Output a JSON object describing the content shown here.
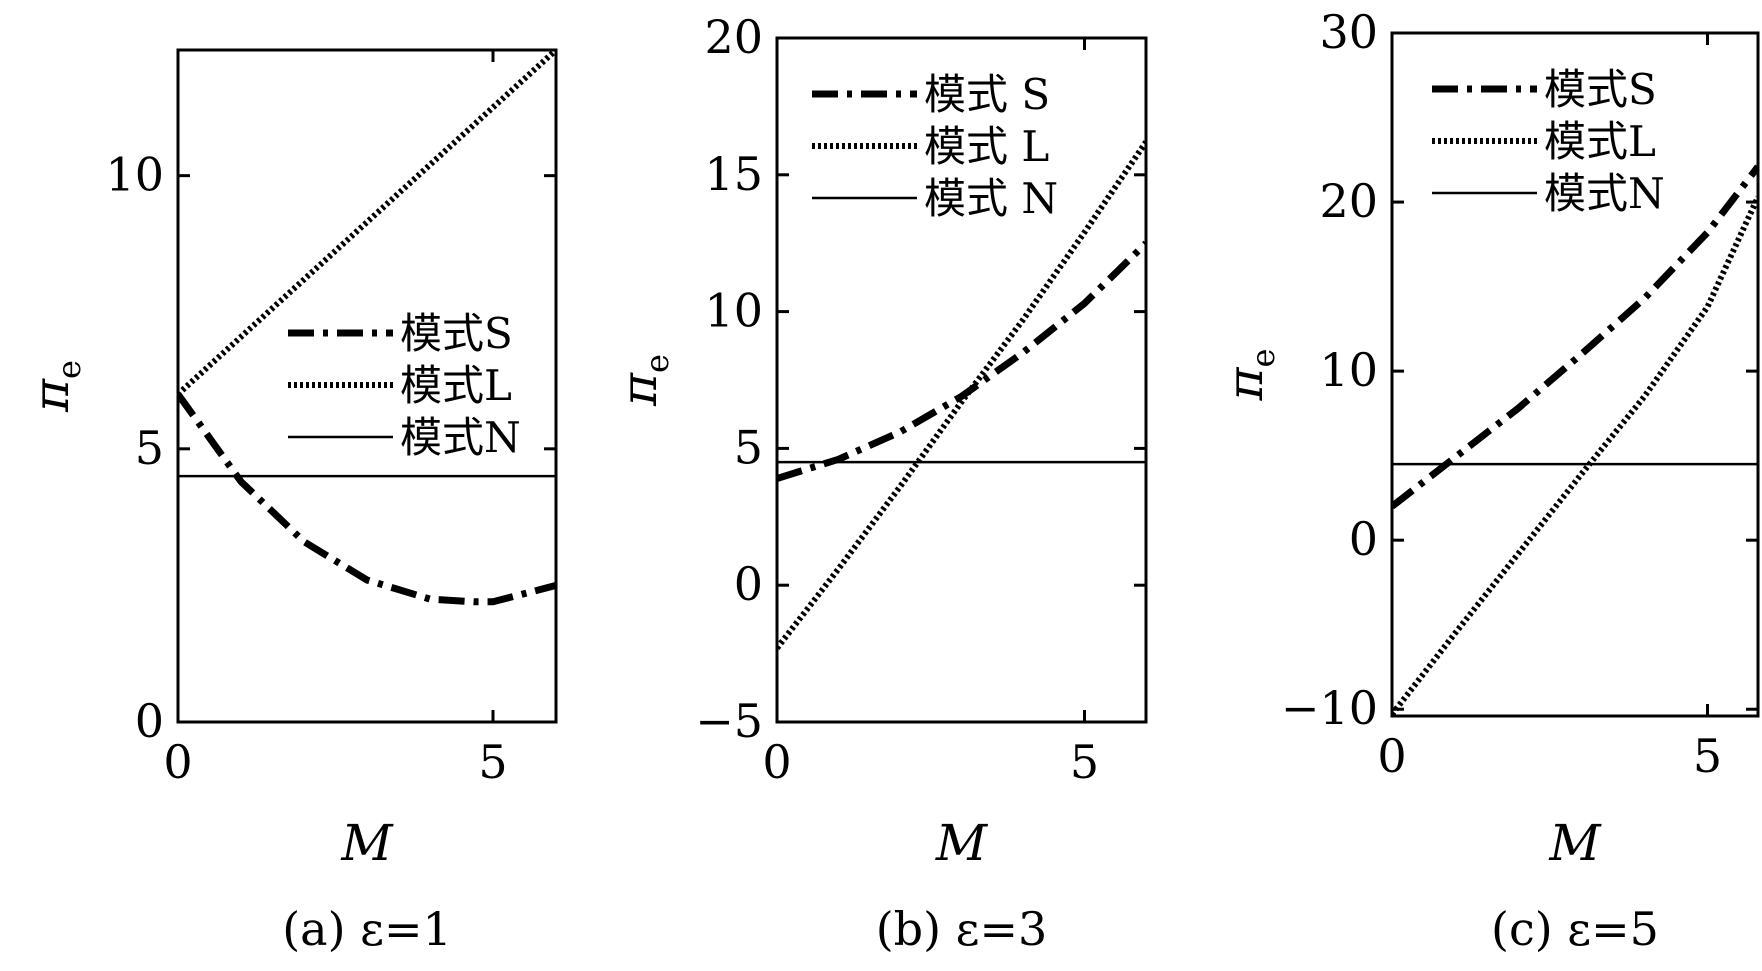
{
  "chart_data": [
    {
      "type": "line",
      "caption": "(a) ε=1",
      "xlabel": "M",
      "ylabel": "π",
      "ylabel_sub": "e",
      "xlim": [
        0,
        6
      ],
      "ylim": [
        0,
        12.3
      ],
      "xticks": [
        0,
        5
      ],
      "xtick_labels": [
        "0",
        "5"
      ],
      "yticks": [
        0,
        5,
        10
      ],
      "ytick_labels": [
        "0",
        "5",
        "10"
      ],
      "legend_position": "center-right",
      "series": [
        {
          "name": "模式S",
          "style": "dashdot",
          "x": [
            0,
            1,
            2,
            3,
            4,
            4.7,
            5,
            6
          ],
          "y": [
            6.0,
            4.4,
            3.3,
            2.6,
            2.25,
            2.2,
            2.2,
            2.5
          ]
        },
        {
          "name": "模式L",
          "style": "dotted",
          "x": [
            0,
            6
          ],
          "y": [
            6.0,
            12.3
          ]
        },
        {
          "name": "模式N",
          "style": "solid",
          "x": [
            0,
            6
          ],
          "y": [
            4.5,
            4.5
          ]
        }
      ]
    },
    {
      "type": "line",
      "caption": "(b) ε=3",
      "xlabel": "M",
      "ylabel": "π",
      "ylabel_sub": "e",
      "xlim": [
        0,
        6
      ],
      "ylim": [
        -5,
        20
      ],
      "xticks": [
        0,
        5
      ],
      "xtick_labels": [
        "0",
        "5"
      ],
      "yticks": [
        -5,
        0,
        5,
        10,
        15,
        20
      ],
      "ytick_labels": [
        "−5",
        "0",
        "5",
        "10",
        "15",
        "20"
      ],
      "legend_position": "top-left",
      "series": [
        {
          "name": "模式 S",
          "style": "dashdot",
          "x": [
            0,
            1,
            2,
            3,
            4,
            5,
            6
          ],
          "y": [
            3.9,
            4.6,
            5.6,
            6.9,
            8.5,
            10.3,
            12.5
          ]
        },
        {
          "name": "模式 L",
          "style": "dotted",
          "x": [
            0,
            1,
            2,
            3,
            4,
            5,
            6
          ],
          "y": [
            -2.3,
            0.6,
            3.6,
            6.7,
            9.7,
            12.9,
            16.2
          ]
        },
        {
          "name": "模式 N",
          "style": "solid",
          "x": [
            0,
            6
          ],
          "y": [
            4.5,
            4.5
          ]
        }
      ]
    },
    {
      "type": "line",
      "caption": "(c) ε=5",
      "xlabel": "M",
      "ylabel": "π",
      "ylabel_sub": "e",
      "xlim": [
        0,
        5.8
      ],
      "ylim": [
        -10.4,
        30
      ],
      "xticks": [
        0,
        5
      ],
      "xtick_labels": [
        "0",
        "5"
      ],
      "yticks": [
        -10,
        0,
        10,
        20,
        30
      ],
      "ytick_labels": [
        "−10",
        "0",
        "10",
        "20",
        "30"
      ],
      "legend_position": "top-left",
      "series": [
        {
          "name": "模式S",
          "style": "dashdot",
          "x": [
            0,
            1,
            2,
            3,
            4,
            5,
            5.8
          ],
          "y": [
            2.0,
            4.9,
            7.8,
            11.0,
            14.3,
            18.2,
            22.1
          ]
        },
        {
          "name": "模式L",
          "style": "dotted",
          "x": [
            0,
            1,
            2,
            3,
            4,
            5,
            5.8
          ],
          "y": [
            -10.3,
            -5.5,
            -0.8,
            3.9,
            8.5,
            13.8,
            20.3
          ]
        },
        {
          "name": "模式N",
          "style": "solid",
          "x": [
            0,
            5.8
          ],
          "y": [
            4.5,
            4.5
          ]
        }
      ]
    }
  ]
}
